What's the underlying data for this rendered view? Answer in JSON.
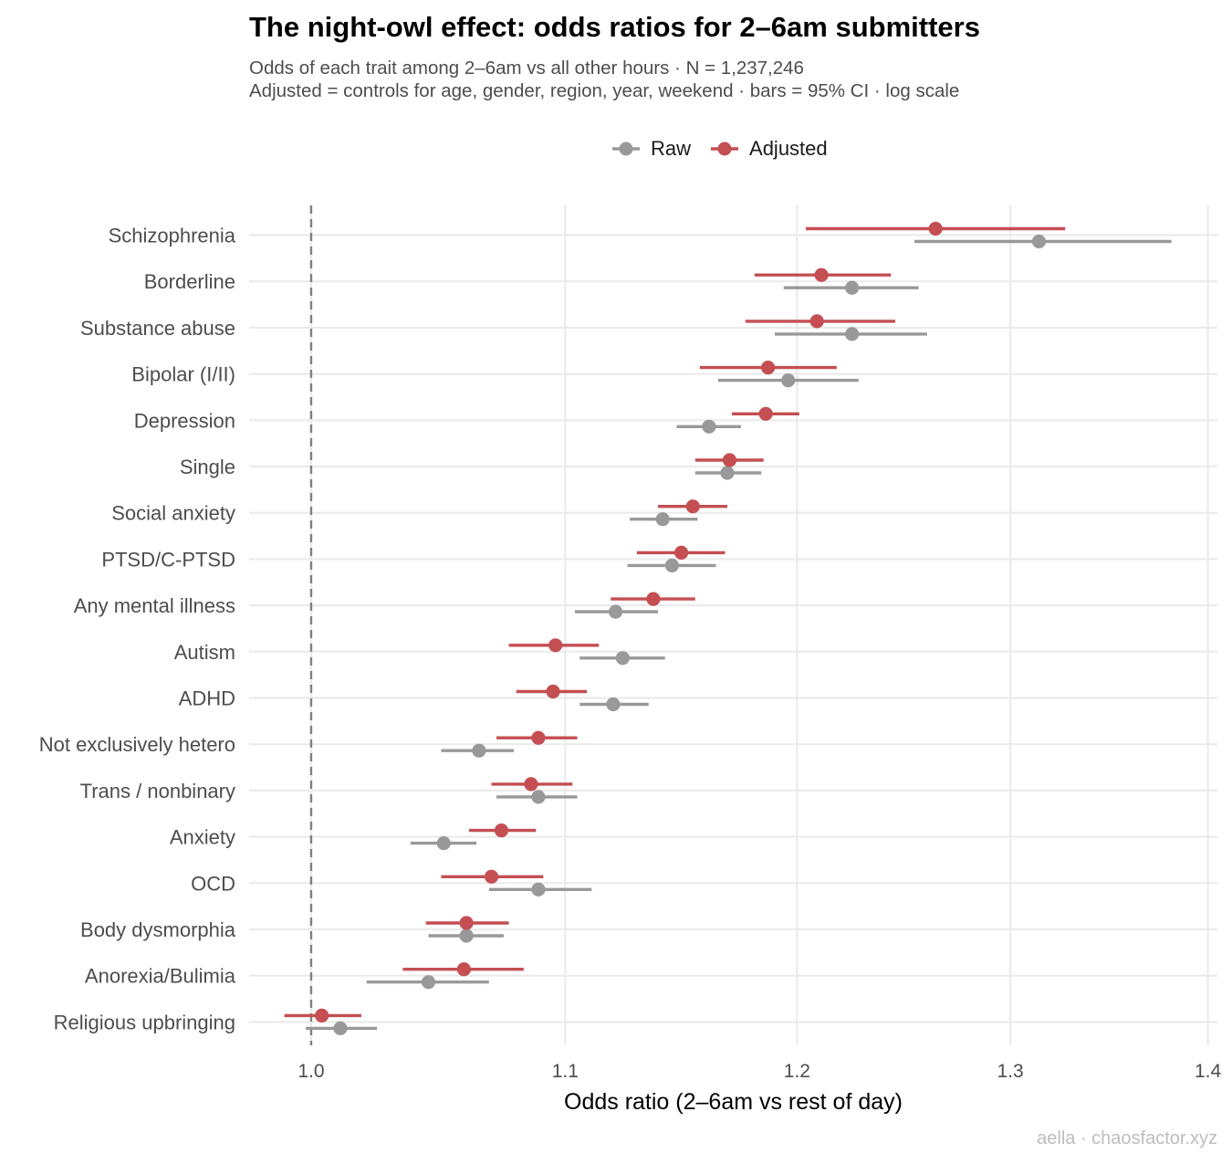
{
  "chart_data": {
    "type": "dot-interval",
    "title": "The night-owl effect: odds ratios for 2–6am submitters",
    "subtitle_line1": "Odds of each trait among 2–6am vs all other hours · N = 1,237,246",
    "subtitle_line2": "Adjusted = controls for age, gender, region, year, weekend · bars = 95% CI · log scale",
    "xlabel": "Odds ratio (2–6am vs rest of day)",
    "xscale": "log",
    "xlim": [
      0.977,
      1.405
    ],
    "xticks": [
      "1.0",
      "1.1",
      "1.2",
      "1.3",
      "1.4"
    ],
    "xtick_values": [
      1.0,
      1.1,
      1.2,
      1.3,
      1.4
    ],
    "reference_line": 1.0,
    "legend": {
      "position": "top",
      "entries": [
        "Raw",
        "Adjusted"
      ]
    },
    "colors": {
      "Raw": "#999999",
      "Adjusted": "#c44e52",
      "grid": "#ebebeb",
      "reference": "#808080"
    },
    "categories": [
      "Schizophrenia",
      "Borderline",
      "Substance abuse",
      "Bipolar (I/II)",
      "Depression",
      "Single",
      "Social anxiety",
      "PTSD/C-PTSD",
      "Any mental illness",
      "Autism",
      "ADHD",
      "Not exclusively hetero",
      "Trans / nonbinary",
      "Anxiety",
      "OCD",
      "Body dysmorphia",
      "Anorexia/Bulimia",
      "Religious upbringing"
    ],
    "series": [
      {
        "name": "Raw",
        "or": [
          1.314,
          1.225,
          1.225,
          1.196,
          1.161,
          1.169,
          1.141,
          1.145,
          1.121,
          1.124,
          1.12,
          1.065,
          1.089,
          1.051,
          1.089,
          1.06,
          1.045,
          1.011
        ],
        "lo": [
          1.254,
          1.194,
          1.19,
          1.165,
          1.147,
          1.155,
          1.127,
          1.126,
          1.104,
          1.106,
          1.106,
          1.05,
          1.072,
          1.038,
          1.069,
          1.045,
          1.021,
          0.998
        ],
        "hi": [
          1.381,
          1.256,
          1.26,
          1.228,
          1.175,
          1.184,
          1.156,
          1.164,
          1.139,
          1.142,
          1.135,
          1.079,
          1.105,
          1.064,
          1.111,
          1.075,
          1.069,
          1.025
        ]
      },
      {
        "name": "Adjusted",
        "or": [
          1.264,
          1.211,
          1.209,
          1.187,
          1.186,
          1.17,
          1.154,
          1.149,
          1.137,
          1.096,
          1.095,
          1.089,
          1.086,
          1.074,
          1.07,
          1.06,
          1.059,
          1.004
        ],
        "lo": [
          1.204,
          1.181,
          1.177,
          1.157,
          1.171,
          1.155,
          1.139,
          1.13,
          1.119,
          1.077,
          1.08,
          1.072,
          1.07,
          1.061,
          1.05,
          1.044,
          1.035,
          0.99
        ],
        "hi": [
          1.327,
          1.243,
          1.245,
          1.218,
          1.201,
          1.185,
          1.169,
          1.168,
          1.155,
          1.114,
          1.109,
          1.105,
          1.103,
          1.088,
          1.091,
          1.077,
          1.083,
          1.019
        ]
      }
    ]
  },
  "caption": "aella · chaosfactor.xyz"
}
